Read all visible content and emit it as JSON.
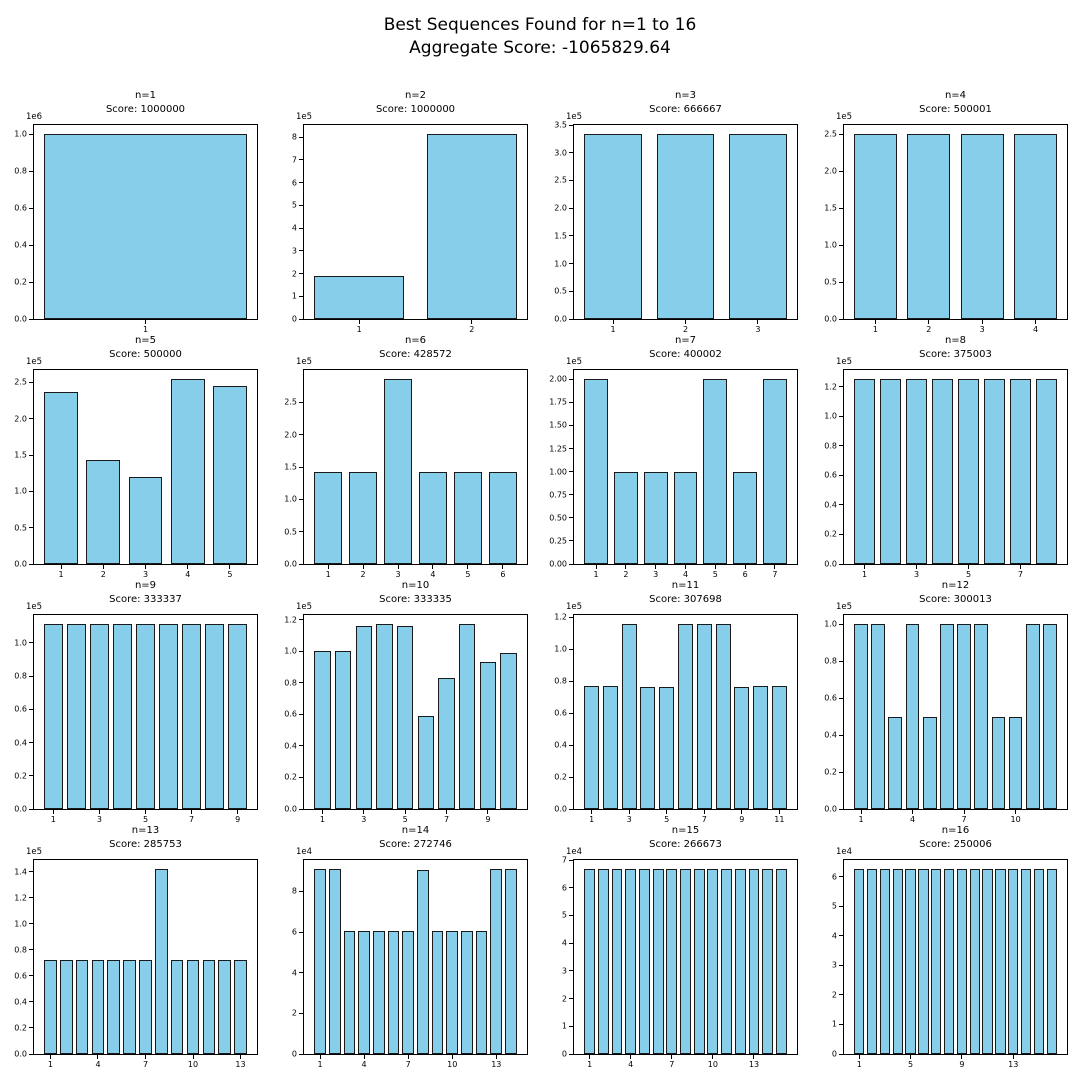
{
  "figure": {
    "title_line1": "Best Sequences Found for n=1 to 16",
    "title_line2": "Aggregate Score: -1065829.64"
  },
  "colors": {
    "bar_fill": "#87CEEB",
    "bar_edge": "#1a1a1a",
    "axis": "#000000",
    "text": "#000000",
    "background": "#ffffff"
  },
  "chart_data": [
    {
      "type": "bar",
      "title": "n=1",
      "score_label": "Score: 1000000",
      "score": 1000000,
      "y_offset_label": "1e6",
      "y_exp": 6,
      "y_max": 1050000,
      "ytick_labels": [
        "0.0",
        "0.2",
        "0.4",
        "0.6",
        "0.8",
        "1.0"
      ],
      "xticks": [
        1
      ],
      "values": [
        1000000
      ]
    },
    {
      "type": "bar",
      "title": "n=2",
      "score_label": "Score: 1000000",
      "score": 1000000,
      "y_offset_label": "1e5",
      "y_exp": 5,
      "y_max": 853000,
      "ytick_labels": [
        "0",
        "1",
        "2",
        "3",
        "4",
        "5",
        "6",
        "7",
        "8"
      ],
      "xticks": [
        1,
        2
      ],
      "values": [
        188000,
        812000
      ]
    },
    {
      "type": "bar",
      "title": "n=3",
      "score_label": "Score: 666667",
      "score": 666667,
      "y_offset_label": "1e5",
      "y_exp": 5,
      "y_max": 350000,
      "ytick_labels": [
        "0.0",
        "0.5",
        "1.0",
        "1.5",
        "2.0",
        "2.5",
        "3.0",
        "3.5"
      ],
      "xticks": [
        1,
        2,
        3
      ],
      "values": [
        333333,
        333333,
        333333
      ]
    },
    {
      "type": "bar",
      "title": "n=4",
      "score_label": "Score: 500001",
      "score": 500001,
      "y_offset_label": "1e5",
      "y_exp": 5,
      "y_max": 262500,
      "ytick_labels": [
        "0.0",
        "0.5",
        "1.0",
        "1.5",
        "2.0",
        "2.5"
      ],
      "xticks": [
        1,
        2,
        3,
        4
      ],
      "values": [
        250000,
        250000,
        250000,
        250000
      ]
    },
    {
      "type": "bar",
      "title": "n=5",
      "score_label": "Score: 500000",
      "score": 500000,
      "y_offset_label": "1e5",
      "y_exp": 5,
      "y_max": 267000,
      "ytick_labels": [
        "0.0",
        "0.5",
        "1.0",
        "1.5",
        "2.0",
        "2.5"
      ],
      "xticks": [
        1,
        2,
        3,
        4,
        5
      ],
      "values": [
        237000,
        143000,
        120000,
        254000,
        245000
      ]
    },
    {
      "type": "bar",
      "title": "n=6",
      "score_label": "Score: 428572",
      "score": 428572,
      "y_offset_label": "1e5",
      "y_exp": 5,
      "y_max": 300000,
      "ytick_labels": [
        "0.0",
        "0.5",
        "1.0",
        "1.5",
        "2.0",
        "2.5"
      ],
      "xticks": [
        1,
        2,
        3,
        4,
        5,
        6
      ],
      "values": [
        142857,
        142857,
        285714,
        142857,
        142857,
        142857
      ]
    },
    {
      "type": "bar",
      "title": "n=7",
      "score_label": "Score: 400002",
      "score": 400002,
      "y_offset_label": "1e5",
      "y_exp": 5,
      "y_max": 210000,
      "ytick_labels": [
        "0.00",
        "0.25",
        "0.50",
        "0.75",
        "1.00",
        "1.25",
        "1.50",
        "1.75",
        "2.00"
      ],
      "xticks": [
        1,
        2,
        3,
        4,
        5,
        6,
        7
      ],
      "values": [
        200000,
        100000,
        100000,
        100000,
        200000,
        100000,
        200000
      ]
    },
    {
      "type": "bar",
      "title": "n=8",
      "score_label": "Score: 375003",
      "score": 375003,
      "y_offset_label": "1e5",
      "y_exp": 5,
      "y_max": 131250,
      "ytick_labels": [
        "0.0",
        "0.2",
        "0.4",
        "0.6",
        "0.8",
        "1.0",
        "1.2"
      ],
      "xticks": [
        1,
        3,
        5,
        7
      ],
      "values": [
        125000,
        125000,
        125000,
        125000,
        125000,
        125000,
        125000,
        125000
      ]
    },
    {
      "type": "bar",
      "title": "n=9",
      "score_label": "Score: 333337",
      "score": 333337,
      "y_offset_label": "1e5",
      "y_exp": 5,
      "y_max": 116700,
      "ytick_labels": [
        "0.0",
        "0.2",
        "0.4",
        "0.6",
        "0.8",
        "1.0"
      ],
      "xticks": [
        1,
        3,
        5,
        7,
        9
      ],
      "values": [
        111111,
        111111,
        111111,
        111111,
        111111,
        111111,
        111111,
        111111,
        111111
      ]
    },
    {
      "type": "bar",
      "title": "n=10",
      "score_label": "Score: 333335",
      "score": 333335,
      "y_offset_label": "1e5",
      "y_exp": 5,
      "y_max": 122900,
      "ytick_labels": [
        "0.0",
        "0.2",
        "0.4",
        "0.6",
        "0.8",
        "1.0",
        "1.2"
      ],
      "xticks": [
        1,
        3,
        5,
        7,
        9
      ],
      "values": [
        100000,
        100000,
        116000,
        117000,
        116000,
        59000,
        83000,
        117000,
        93000,
        99000
      ]
    },
    {
      "type": "bar",
      "title": "n=11",
      "score_label": "Score: 307698",
      "score": 307698,
      "y_offset_label": "1e5",
      "y_exp": 5,
      "y_max": 121300,
      "ytick_labels": [
        "0.0",
        "0.2",
        "0.4",
        "0.6",
        "0.8",
        "1.0",
        "1.2"
      ],
      "xticks": [
        1,
        3,
        5,
        7,
        9,
        11
      ],
      "values": [
        77000,
        77000,
        115500,
        76500,
        76500,
        115500,
        115500,
        115500,
        76500,
        77000,
        77000
      ]
    },
    {
      "type": "bar",
      "title": "n=12",
      "score_label": "Score: 300013",
      "score": 300013,
      "y_offset_label": "1e5",
      "y_exp": 5,
      "y_max": 105000,
      "ytick_labels": [
        "0.0",
        "0.2",
        "0.4",
        "0.6",
        "0.8",
        "1.0"
      ],
      "xticks": [
        1,
        4,
        7,
        10
      ],
      "values": [
        100000,
        100000,
        50000,
        100000,
        50000,
        100000,
        100000,
        100000,
        50000,
        50000,
        100000,
        100000
      ]
    },
    {
      "type": "bar",
      "title": "n=13",
      "score_label": "Score: 285753",
      "score": 285753,
      "y_offset_label": "1e5",
      "y_exp": 5,
      "y_max": 149100,
      "ytick_labels": [
        "0.0",
        "0.2",
        "0.4",
        "0.6",
        "0.8",
        "1.0",
        "1.2",
        "1.4"
      ],
      "xticks": [
        1,
        4,
        7,
        10,
        13
      ],
      "values": [
        72000,
        72000,
        72000,
        72000,
        72000,
        72000,
        72000,
        142000,
        72000,
        72000,
        72000,
        72000,
        72000
      ]
    },
    {
      "type": "bar",
      "title": "n=14",
      "score_label": "Score: 272746",
      "score": 272746,
      "y_offset_label": "1e4",
      "y_exp": 4,
      "y_max": 95500,
      "ytick_labels": [
        "0",
        "2",
        "4",
        "6",
        "8"
      ],
      "xticks": [
        1,
        4,
        7,
        10,
        13
      ],
      "values": [
        90900,
        90900,
        60600,
        60600,
        60600,
        60600,
        60600,
        90500,
        60600,
        60600,
        60600,
        60600,
        90900,
        90900
      ]
    },
    {
      "type": "bar",
      "title": "n=15",
      "score_label": "Score: 266673",
      "score": 266673,
      "y_offset_label": "1e4",
      "y_exp": 4,
      "y_max": 70000,
      "ytick_labels": [
        "0",
        "1",
        "2",
        "3",
        "4",
        "5",
        "6",
        "7"
      ],
      "xticks": [
        1,
        4,
        7,
        10,
        13
      ],
      "values": [
        66667,
        66667,
        66667,
        66667,
        66667,
        66667,
        66667,
        66667,
        66667,
        66667,
        66667,
        66667,
        66667,
        66667,
        66667
      ]
    },
    {
      "type": "bar",
      "title": "n=16",
      "score_label": "Score: 250006",
      "score": 250006,
      "y_offset_label": "1e4",
      "y_exp": 4,
      "y_max": 65625,
      "ytick_labels": [
        "0",
        "1",
        "2",
        "3",
        "4",
        "5",
        "6"
      ],
      "xticks": [
        1,
        5,
        9,
        13
      ],
      "values": [
        62500,
        62500,
        62500,
        62500,
        62500,
        62500,
        62500,
        62500,
        62500,
        62500,
        62500,
        62500,
        62500,
        62500,
        62500,
        62500
      ]
    }
  ]
}
